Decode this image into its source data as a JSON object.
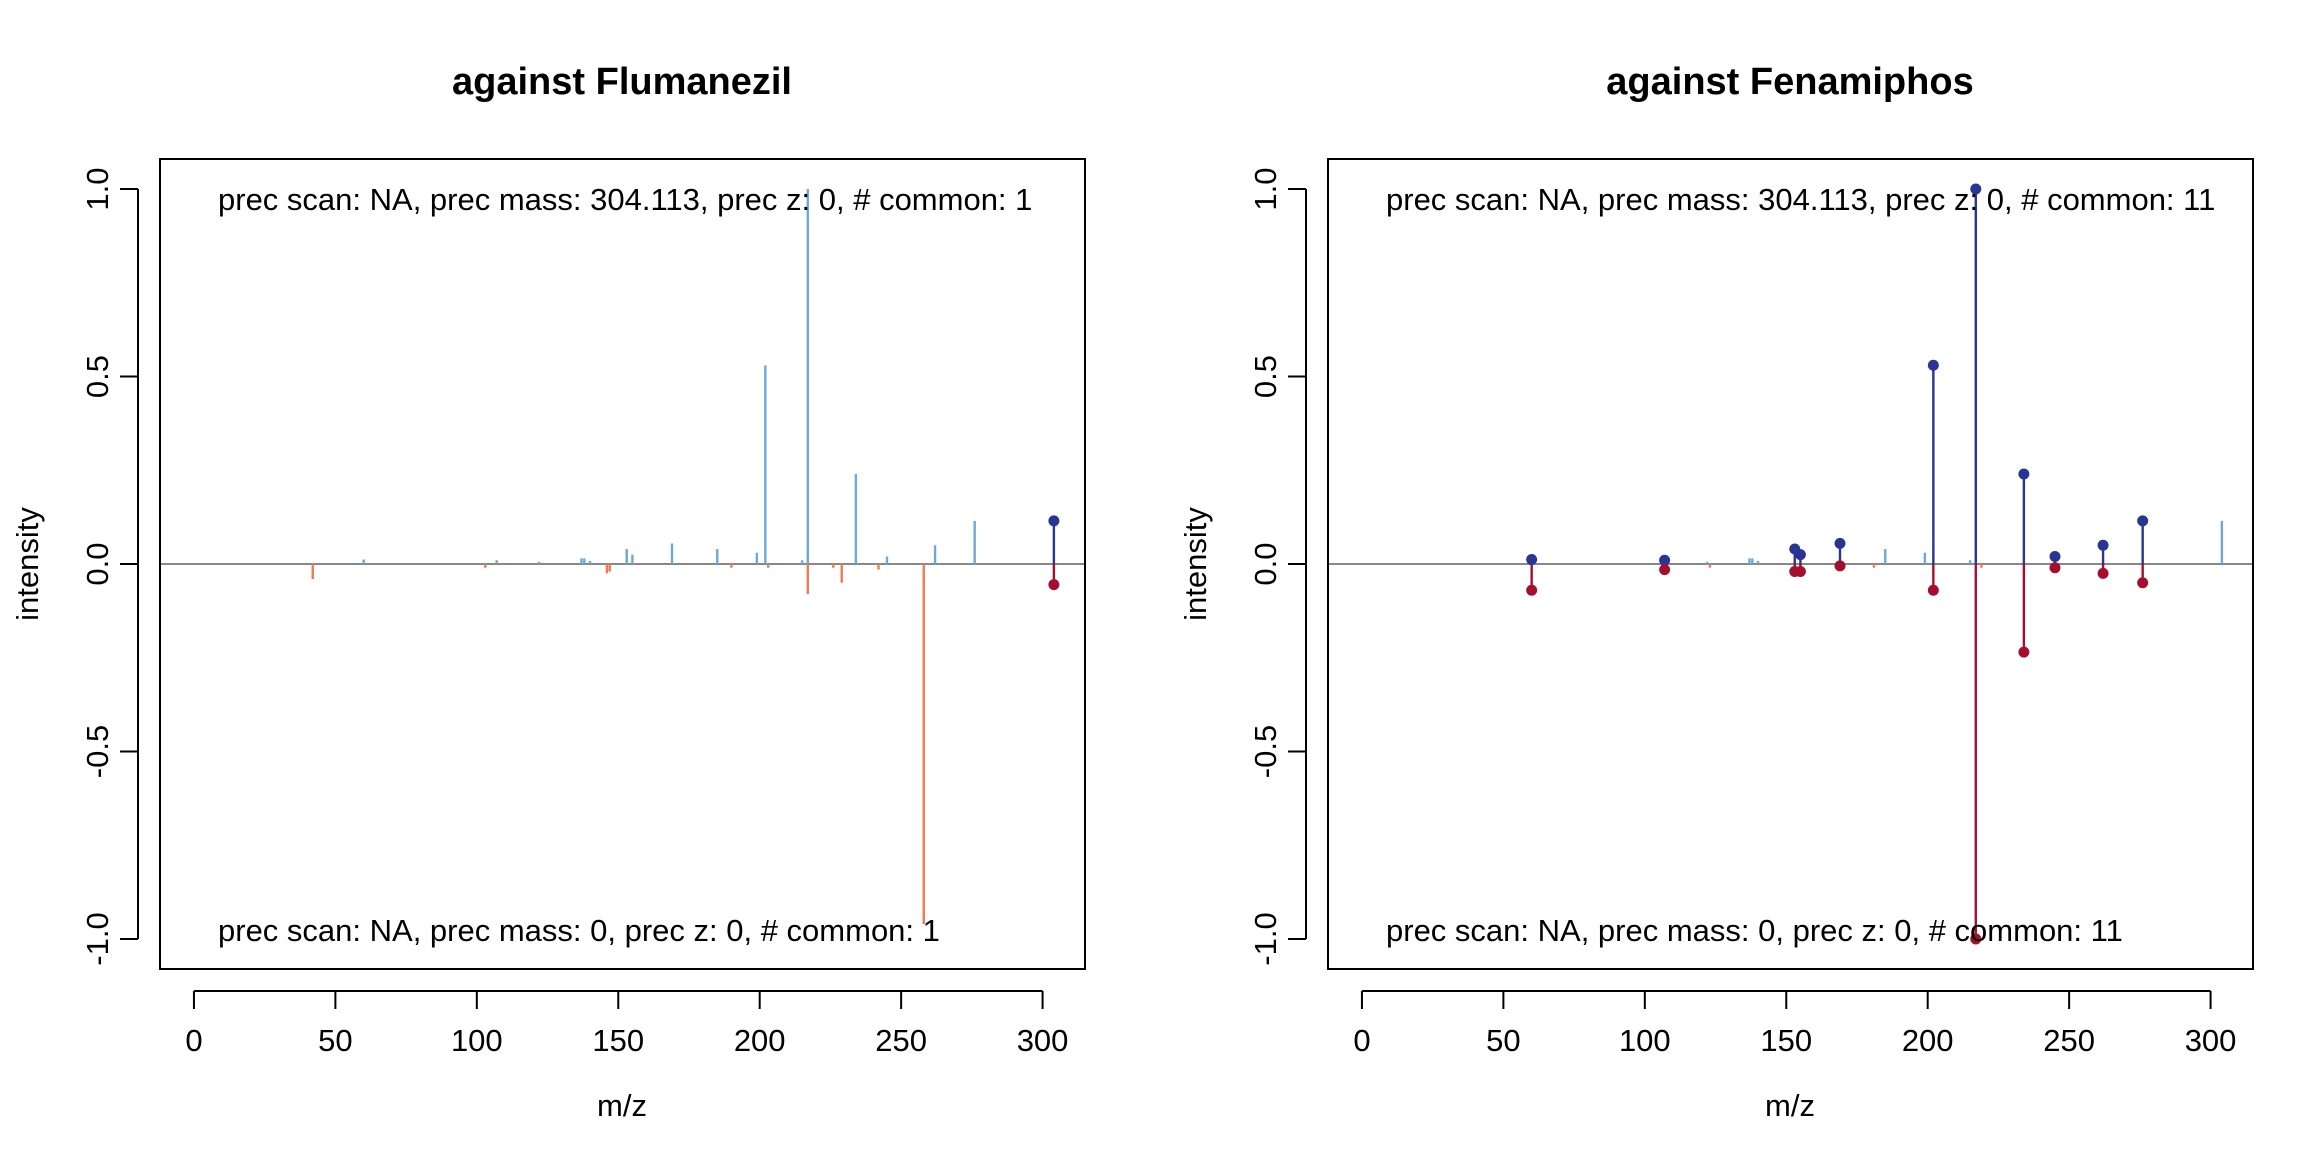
{
  "colors": {
    "query_unmatched": "#6FA8D6",
    "library_unmatched": "#F07A52",
    "query_matched": "#283593",
    "library_matched": "#A50E2D",
    "zero_line": "#888888",
    "frame": "#000000"
  },
  "chart_data": [
    {
      "type": "mirror-spectrum",
      "title": "against Flumanezil",
      "xlabel": "m/z",
      "ylabel": "intensity",
      "xlim": [
        -12,
        315
      ],
      "ylim": [
        -1.08,
        1.08
      ],
      "x_ticks": [
        0,
        50,
        100,
        150,
        200,
        250,
        300
      ],
      "x_tick_labels": [
        "0",
        "50",
        "100",
        "150",
        "200",
        "250",
        "300"
      ],
      "y_ticks": [
        -1.0,
        -0.5,
        0.0,
        0.5,
        1.0
      ],
      "y_tick_labels": [
        "-1.0",
        "-0.5",
        "0.0",
        "0.5",
        "1.0"
      ],
      "grid": false,
      "legend": "none",
      "annotation_top": "prec scan: NA, prec mass: 304.113, prec z: 0, # common: 1",
      "annotation_bottom": "prec scan: NA, prec mass: 0, prec z: 0, # common: 1",
      "query_peaks": [
        {
          "mz": 60,
          "intensity": 0.012
        },
        {
          "mz": 107,
          "intensity": 0.01
        },
        {
          "mz": 122,
          "intensity": 0.006
        },
        {
          "mz": 137,
          "intensity": 0.015
        },
        {
          "mz": 138,
          "intensity": 0.015
        },
        {
          "mz": 140,
          "intensity": 0.008
        },
        {
          "mz": 153,
          "intensity": 0.04
        },
        {
          "mz": 155,
          "intensity": 0.025
        },
        {
          "mz": 169,
          "intensity": 0.055
        },
        {
          "mz": 185,
          "intensity": 0.04
        },
        {
          "mz": 199,
          "intensity": 0.03
        },
        {
          "mz": 202,
          "intensity": 0.53
        },
        {
          "mz": 215,
          "intensity": 0.01
        },
        {
          "mz": 217,
          "intensity": 1.0
        },
        {
          "mz": 234,
          "intensity": 0.24
        },
        {
          "mz": 245,
          "intensity": 0.02
        },
        {
          "mz": 262,
          "intensity": 0.05
        },
        {
          "mz": 276,
          "intensity": 0.115
        }
      ],
      "library_peaks": [
        {
          "mz": 42,
          "intensity": -0.04
        },
        {
          "mz": 103,
          "intensity": -0.01
        },
        {
          "mz": 146,
          "intensity": -0.025
        },
        {
          "mz": 147,
          "intensity": -0.02
        },
        {
          "mz": 190,
          "intensity": -0.01
        },
        {
          "mz": 203,
          "intensity": -0.01
        },
        {
          "mz": 217,
          "intensity": -0.08
        },
        {
          "mz": 226,
          "intensity": -0.01
        },
        {
          "mz": 229,
          "intensity": -0.05
        },
        {
          "mz": 242,
          "intensity": -0.015
        },
        {
          "mz": 258,
          "intensity": -0.96
        }
      ],
      "matched_peaks": [
        {
          "mz": 304,
          "query_intensity": 0.115,
          "library_intensity": -0.055
        }
      ]
    },
    {
      "type": "mirror-spectrum",
      "title": "against Fenamiphos",
      "xlabel": "m/z",
      "ylabel": "intensity",
      "xlim": [
        -12,
        315
      ],
      "ylim": [
        -1.08,
        1.08
      ],
      "x_ticks": [
        0,
        50,
        100,
        150,
        200,
        250,
        300
      ],
      "x_tick_labels": [
        "0",
        "50",
        "100",
        "150",
        "200",
        "250",
        "300"
      ],
      "y_ticks": [
        -1.0,
        -0.5,
        0.0,
        0.5,
        1.0
      ],
      "y_tick_labels": [
        "-1.0",
        "-0.5",
        "0.0",
        "0.5",
        "1.0"
      ],
      "grid": false,
      "legend": "none",
      "annotation_top": "prec scan: NA, prec mass: 304.113, prec z: 0, # common: 11",
      "annotation_bottom": "prec scan: NA, prec mass: 0, prec z: 0, # common: 11",
      "query_peaks": [
        {
          "mz": 122,
          "intensity": 0.006
        },
        {
          "mz": 137,
          "intensity": 0.015
        },
        {
          "mz": 138,
          "intensity": 0.015
        },
        {
          "mz": 140,
          "intensity": 0.008
        },
        {
          "mz": 185,
          "intensity": 0.04
        },
        {
          "mz": 199,
          "intensity": 0.03
        },
        {
          "mz": 215,
          "intensity": 0.01
        },
        {
          "mz": 304,
          "intensity": 0.115
        }
      ],
      "library_peaks": [
        {
          "mz": 123,
          "intensity": -0.01
        },
        {
          "mz": 181,
          "intensity": -0.01
        },
        {
          "mz": 219,
          "intensity": -0.01
        }
      ],
      "matched_peaks": [
        {
          "mz": 60,
          "query_intensity": 0.012,
          "library_intensity": -0.07
        },
        {
          "mz": 107,
          "query_intensity": 0.01,
          "library_intensity": -0.015
        },
        {
          "mz": 153,
          "query_intensity": 0.04,
          "library_intensity": -0.02
        },
        {
          "mz": 155,
          "query_intensity": 0.025,
          "library_intensity": -0.02
        },
        {
          "mz": 169,
          "query_intensity": 0.055,
          "library_intensity": -0.005
        },
        {
          "mz": 202,
          "query_intensity": 0.53,
          "library_intensity": -0.07
        },
        {
          "mz": 217,
          "query_intensity": 1.0,
          "library_intensity": -1.0
        },
        {
          "mz": 234,
          "query_intensity": 0.24,
          "library_intensity": -0.235
        },
        {
          "mz": 245,
          "query_intensity": 0.02,
          "library_intensity": -0.01
        },
        {
          "mz": 262,
          "query_intensity": 0.05,
          "library_intensity": -0.025
        },
        {
          "mz": 276,
          "query_intensity": 0.115,
          "library_intensity": -0.05
        }
      ]
    }
  ]
}
